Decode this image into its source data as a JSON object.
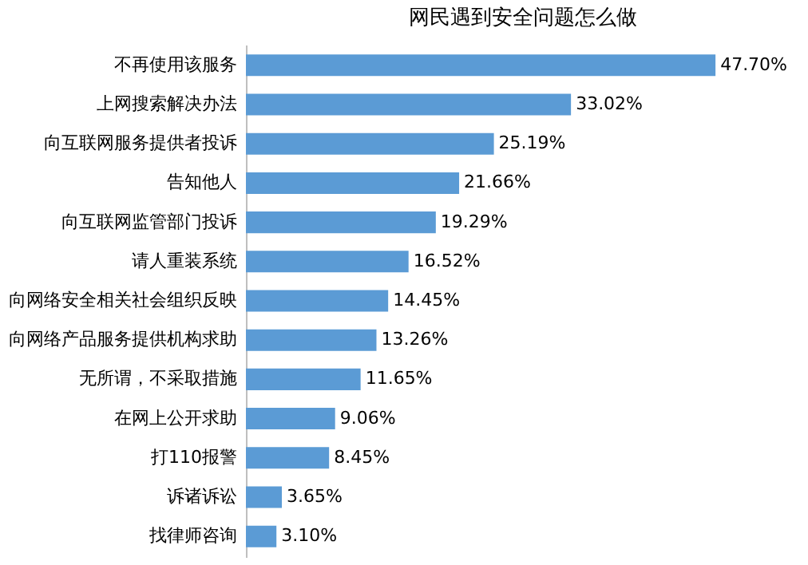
{
  "chart_data": {
    "type": "bar",
    "orientation": "horizontal",
    "title": "网民遇到安全问题怎么做",
    "categories": [
      "不再使用该服务",
      "上网搜索解决办法",
      "向互联网服务提供者投诉",
      "告知他人",
      "向互联网监管部门投诉",
      "请人重装系统",
      "向网络安全相关社会组织反映",
      "向网络产品服务提供机构求助",
      "无所谓，不采取措施",
      "在网上公开求助",
      "打110报警",
      "诉诸诉讼",
      "找律师咨询"
    ],
    "values": [
      47.7,
      33.02,
      25.19,
      21.66,
      19.29,
      16.52,
      14.45,
      13.26,
      11.65,
      9.06,
      8.45,
      3.65,
      3.1
    ],
    "value_labels": [
      "47.70%",
      "33.02%",
      "25.19%",
      "21.66%",
      "19.29%",
      "16.52%",
      "14.45%",
      "13.26%",
      "11.65%",
      "9.06%",
      "8.45%",
      "3.65%",
      "3.10%"
    ],
    "color": "#5b9bd5"
  }
}
